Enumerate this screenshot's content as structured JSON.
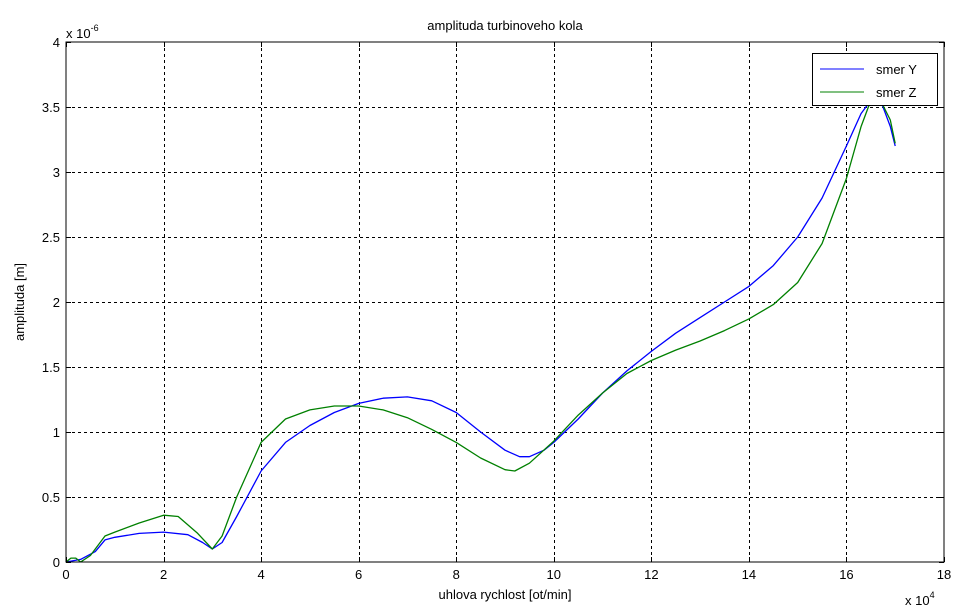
{
  "chart_data": {
    "type": "line",
    "title": "amplituda turbinoveho kola",
    "xlabel": "uhlova rychlost [ot/min]",
    "ylabel": "amplituda [m]",
    "x_multiplier": {
      "base": "x 10",
      "exp": "4"
    },
    "y_multiplier": {
      "base": "x 10",
      "exp": "-6"
    },
    "xlim": [
      0,
      18
    ],
    "ylim": [
      0,
      4
    ],
    "xticks": [
      0,
      2,
      4,
      6,
      8,
      10,
      12,
      14,
      16,
      18
    ],
    "yticks": [
      0,
      0.5,
      1,
      1.5,
      2,
      2.5,
      3,
      3.5,
      4
    ],
    "xtick_labels": [
      "0",
      "2",
      "4",
      "6",
      "8",
      "10",
      "12",
      "14",
      "16",
      "18"
    ],
    "ytick_labels": [
      "0",
      "0.5",
      "1",
      "1.5",
      "2",
      "2.5",
      "3",
      "3.5",
      "4"
    ],
    "grid": true,
    "legend_position": "top-right",
    "series": [
      {
        "name": "smer Y",
        "color": "#0000ff",
        "x": [
          0,
          0.3,
          0.6,
          0.8,
          1.0,
          1.5,
          2.0,
          2.5,
          2.8,
          3.0,
          3.2,
          3.5,
          4.0,
          4.5,
          5.0,
          5.5,
          6.0,
          6.5,
          7.0,
          7.5,
          8.0,
          8.5,
          9.0,
          9.3,
          9.5,
          9.8,
          10.0,
          10.5,
          11.0,
          11.5,
          12.0,
          12.5,
          13.0,
          13.5,
          14.0,
          14.5,
          15.0,
          15.5,
          16.0,
          16.3,
          16.5,
          16.7,
          16.9,
          17.0
        ],
        "y": [
          0,
          0.02,
          0.08,
          0.17,
          0.19,
          0.22,
          0.23,
          0.21,
          0.15,
          0.1,
          0.15,
          0.35,
          0.7,
          0.92,
          1.05,
          1.15,
          1.22,
          1.26,
          1.27,
          1.24,
          1.15,
          1.0,
          0.86,
          0.81,
          0.81,
          0.86,
          0.92,
          1.1,
          1.3,
          1.47,
          1.62,
          1.76,
          1.88,
          2.0,
          2.12,
          2.28,
          2.5,
          2.8,
          3.2,
          3.45,
          3.55,
          3.55,
          3.35,
          3.2
        ]
      },
      {
        "name": "smer Z",
        "color": "#008000",
        "x": [
          0,
          0.1,
          0.2,
          0.3,
          0.5,
          0.8,
          1.0,
          1.5,
          2.0,
          2.3,
          2.7,
          3.0,
          3.2,
          3.5,
          4.0,
          4.5,
          5.0,
          5.5,
          6.0,
          6.5,
          7.0,
          7.5,
          8.0,
          8.5,
          9.0,
          9.2,
          9.5,
          10.0,
          10.5,
          11.0,
          11.5,
          12.0,
          12.5,
          13.0,
          13.5,
          14.0,
          14.5,
          15.0,
          15.5,
          16.0,
          16.3,
          16.5,
          16.7,
          16.9,
          17.0
        ],
        "y": [
          0,
          0.03,
          0.03,
          0.0,
          0.05,
          0.2,
          0.23,
          0.3,
          0.36,
          0.35,
          0.22,
          0.1,
          0.2,
          0.5,
          0.92,
          1.1,
          1.17,
          1.2,
          1.2,
          1.17,
          1.11,
          1.02,
          0.92,
          0.8,
          0.71,
          0.7,
          0.76,
          0.93,
          1.13,
          1.3,
          1.45,
          1.55,
          1.63,
          1.7,
          1.78,
          1.87,
          1.98,
          2.15,
          2.45,
          2.95,
          3.35,
          3.55,
          3.55,
          3.4,
          3.22
        ]
      }
    ]
  }
}
